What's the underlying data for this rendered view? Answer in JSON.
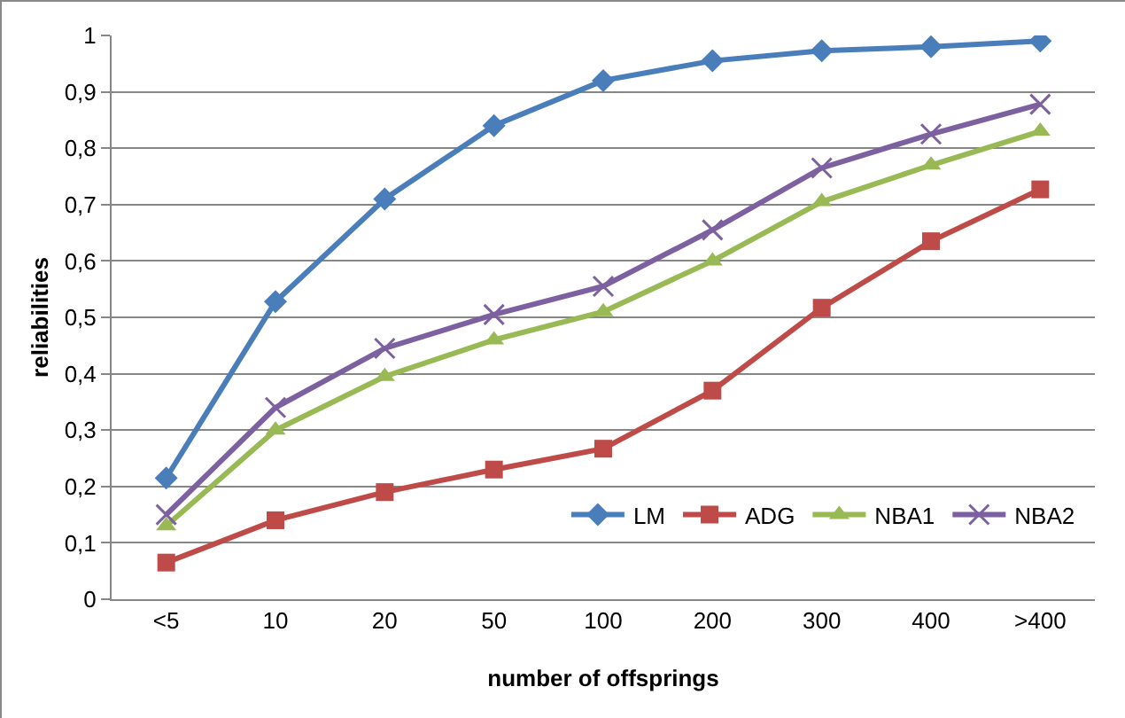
{
  "chart_data": {
    "type": "line",
    "xlabel": "number of offsprings",
    "ylabel": "reliabilities",
    "categories": [
      "<5",
      "10",
      "20",
      "50",
      "100",
      "200",
      "300",
      "400",
      ">400"
    ],
    "series": [
      {
        "name": "LM",
        "color": "#4a7ebb",
        "marker": "diamond",
        "values": [
          0.215,
          0.528,
          0.71,
          0.84,
          0.92,
          0.955,
          0.973,
          0.98,
          0.99
        ]
      },
      {
        "name": "ADG",
        "color": "#be4b48",
        "marker": "square",
        "values": [
          0.065,
          0.14,
          0.19,
          0.23,
          0.267,
          0.37,
          0.517,
          0.635,
          0.727
        ]
      },
      {
        "name": "NBA1",
        "color": "#98b954",
        "marker": "triangle",
        "values": [
          0.13,
          0.3,
          0.395,
          0.46,
          0.51,
          0.6,
          0.705,
          0.77,
          0.83
        ]
      },
      {
        "name": "NBA2",
        "color": "#7d60a0",
        "marker": "cross",
        "values": [
          0.15,
          0.34,
          0.445,
          0.505,
          0.555,
          0.655,
          0.765,
          0.825,
          0.878
        ]
      }
    ],
    "ylim": [
      0,
      1
    ],
    "yticks": [
      0,
      {
        "value": 0.1,
        "label": "0,1"
      },
      {
        "value": 0.2,
        "label": "0,2"
      },
      {
        "value": 0.3,
        "label": "0,3"
      },
      {
        "value": 0.4,
        "label": "0,4"
      },
      {
        "value": 0.5,
        "label": "0,5"
      },
      {
        "value": 0.6,
        "label": "0,6"
      },
      {
        "value": 0.7,
        "label": "0,7"
      },
      {
        "value": 0.8,
        "label": "0,8"
      },
      {
        "value": 0.9,
        "label": "0,9"
      },
      1
    ],
    "grid": "y",
    "legend": "bottom right",
    "line_style": "solid"
  }
}
